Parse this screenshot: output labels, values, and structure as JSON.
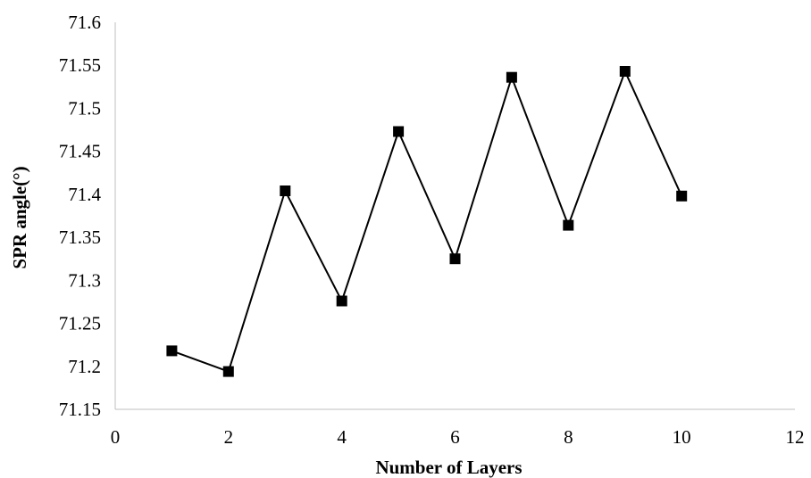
{
  "chart_data": {
    "type": "line",
    "title": "",
    "xlabel": "Number of Layers",
    "ylabel": "SPR angle(°)",
    "xlim": [
      0,
      12
    ],
    "ylim": [
      71.15,
      71.6
    ],
    "x_ticks": [
      "0",
      "2",
      "4",
      "6",
      "8",
      "10",
      "12"
    ],
    "y_ticks": [
      "71.15",
      "71.2",
      "71.25",
      "71.3",
      "71.35",
      "71.4",
      "71.45",
      "71.5",
      "71.55",
      "71.6"
    ],
    "grid": false,
    "legend": "none",
    "marker": "square",
    "line_color": "#000000",
    "series": [
      {
        "x": [
          1,
          2,
          3,
          4,
          5,
          6,
          7,
          8,
          9,
          10
        ],
        "y": [
          71.218,
          71.194,
          71.404,
          71.276,
          71.473,
          71.325,
          71.536,
          71.364,
          71.543,
          71.398
        ]
      }
    ]
  }
}
